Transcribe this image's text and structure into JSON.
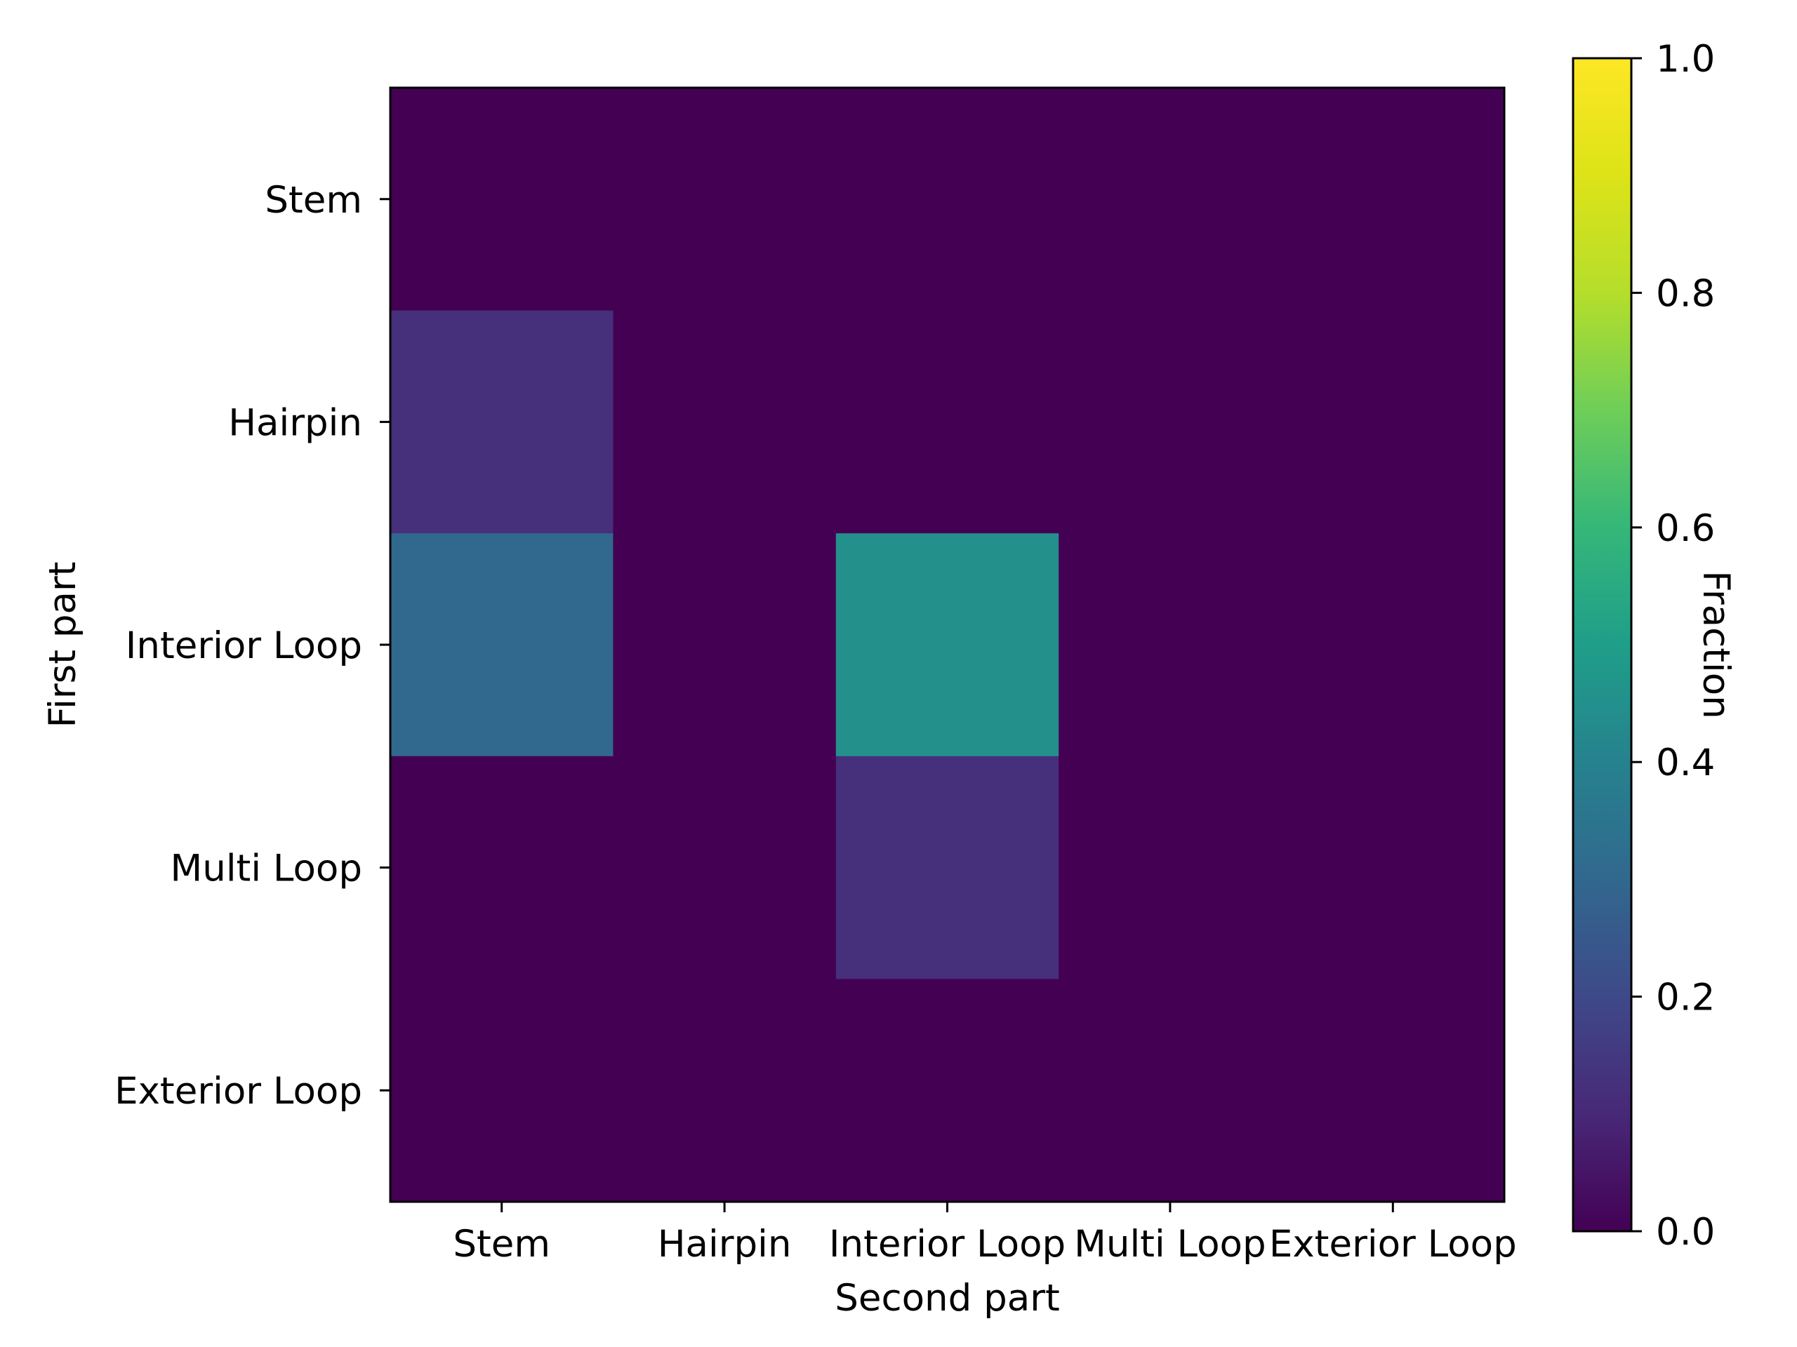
{
  "chart_data": {
    "type": "heatmap",
    "x_categories": [
      "Stem",
      "Hairpin",
      "Interior Loop",
      "Multi Loop",
      "Exterior Loop"
    ],
    "y_categories": [
      "Stem",
      "Hairpin",
      "Interior Loop",
      "Multi Loop",
      "Exterior Loop"
    ],
    "values": [
      [
        0.0,
        0.0,
        0.0,
        0.0,
        0.0
      ],
      [
        0.12,
        0.0,
        0.0,
        0.0,
        0.0
      ],
      [
        0.3,
        0.0,
        0.45,
        0.0,
        0.0
      ],
      [
        0.0,
        0.0,
        0.12,
        0.0,
        0.0
      ],
      [
        0.0,
        0.0,
        0.0,
        0.0,
        0.0
      ]
    ],
    "xlabel": "Second part",
    "ylabel": "First part",
    "colorbar": {
      "label": "Fraction",
      "range": [
        0.0,
        1.0
      ],
      "ticks": [
        0.0,
        0.2,
        0.4,
        0.6,
        0.8,
        1.0
      ],
      "tick_labels": [
        "0.0",
        "0.2",
        "0.4",
        "0.6",
        "0.8",
        "1.0"
      ],
      "colormap": "viridis"
    },
    "grid": false
  }
}
